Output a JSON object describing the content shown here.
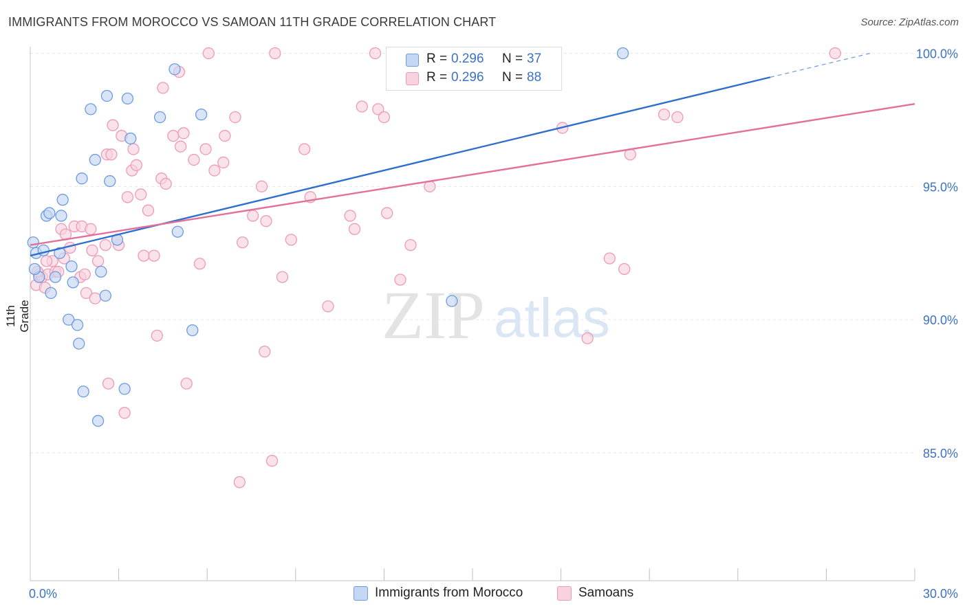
{
  "title": "IMMIGRANTS FROM MOROCCO VS SAMOAN 11TH GRADE CORRELATION CHART",
  "source": "Source: ZipAtlas.com",
  "watermark": {
    "zip": "ZIP",
    "atlas": "atlas"
  },
  "colors": {
    "blue_stroke": "#6b9be0",
    "blue_fill": "#c4d7f3",
    "blue_line": "#2f6fcc",
    "pink_stroke": "#ee9ab6",
    "pink_fill": "#f8d2de",
    "pink_line": "#e2709a",
    "axis_label": "#3b72c4",
    "grid": "#e6e6e6"
  },
  "stats": [
    {
      "r_label": "R =",
      "r_value": "0.296",
      "n_label": "N =",
      "n_value": "37",
      "series": "blue"
    },
    {
      "r_label": "R =",
      "r_value": "0.296",
      "n_label": "N =",
      "n_value": "88",
      "series": "pink"
    }
  ],
  "legend": [
    {
      "label": "Immigrants from Morocco",
      "series": "blue"
    },
    {
      "label": "Samoans",
      "series": "pink"
    }
  ],
  "chart_data": {
    "type": "scatter",
    "title": "IMMIGRANTS FROM MOROCCO VS SAMOAN 11TH GRADE CORRELATION CHART",
    "xlabel": "",
    "ylabel": "11th Grade",
    "xlim": [
      0,
      30
    ],
    "ylim": [
      80.2,
      100.4
    ],
    "x_tick_labels": [
      "0.0%",
      "30.0%"
    ],
    "y_ticks": [
      85,
      90,
      95,
      100
    ],
    "y_tick_labels": [
      "85.0%",
      "90.0%",
      "95.0%",
      "100.0%"
    ],
    "grid": true,
    "series": [
      {
        "name": "Immigrants from Morocco",
        "color": "blue",
        "points": [
          [
            0.1,
            92.9
          ],
          [
            0.2,
            92.5
          ],
          [
            0.3,
            91.6
          ],
          [
            0.45,
            92.6
          ],
          [
            0.55,
            93.9
          ],
          [
            0.65,
            94.0
          ],
          [
            0.7,
            91.0
          ],
          [
            0.85,
            91.6
          ],
          [
            1.0,
            92.5
          ],
          [
            1.05,
            93.9
          ],
          [
            1.1,
            94.5
          ],
          [
            1.3,
            90.0
          ],
          [
            1.4,
            92.0
          ],
          [
            1.45,
            91.4
          ],
          [
            1.6,
            89.8
          ],
          [
            1.65,
            89.1
          ],
          [
            1.75,
            95.3
          ],
          [
            1.8,
            87.3
          ],
          [
            2.05,
            97.9
          ],
          [
            2.2,
            96.0
          ],
          [
            2.3,
            86.2
          ],
          [
            2.4,
            91.8
          ],
          [
            2.55,
            90.9
          ],
          [
            2.6,
            98.4
          ],
          [
            2.7,
            95.2
          ],
          [
            2.95,
            93.0
          ],
          [
            3.2,
            87.4
          ],
          [
            3.3,
            98.3
          ],
          [
            3.4,
            96.8
          ],
          [
            4.4,
            97.6
          ],
          [
            4.9,
            99.4
          ],
          [
            5.0,
            93.3
          ],
          [
            5.5,
            89.6
          ],
          [
            5.8,
            97.7
          ],
          [
            14.3,
            90.7
          ],
          [
            20.1,
            100.0
          ],
          [
            0.15,
            91.9
          ]
        ]
      },
      {
        "name": "Samoans",
        "color": "pink",
        "points": [
          [
            0.2,
            91.3
          ],
          [
            0.3,
            91.7
          ],
          [
            0.4,
            91.6
          ],
          [
            0.5,
            91.2
          ],
          [
            0.6,
            91.7
          ],
          [
            0.75,
            92.2
          ],
          [
            0.85,
            91.8
          ],
          [
            1.05,
            93.4
          ],
          [
            1.15,
            92.3
          ],
          [
            1.2,
            93.2
          ],
          [
            1.35,
            92.7
          ],
          [
            1.5,
            93.5
          ],
          [
            1.7,
            91.6
          ],
          [
            1.75,
            93.5
          ],
          [
            1.9,
            91.0
          ],
          [
            2.05,
            93.4
          ],
          [
            2.1,
            92.6
          ],
          [
            2.2,
            90.8
          ],
          [
            2.3,
            92.2
          ],
          [
            2.55,
            92.8
          ],
          [
            2.6,
            96.2
          ],
          [
            2.75,
            96.2
          ],
          [
            2.65,
            87.6
          ],
          [
            2.8,
            97.3
          ],
          [
            3.0,
            92.8
          ],
          [
            3.1,
            96.9
          ],
          [
            3.2,
            86.5
          ],
          [
            3.3,
            94.6
          ],
          [
            3.45,
            95.6
          ],
          [
            3.5,
            96.4
          ],
          [
            3.6,
            95.8
          ],
          [
            3.75,
            94.7
          ],
          [
            3.85,
            92.4
          ],
          [
            4.0,
            94.1
          ],
          [
            4.2,
            92.4
          ],
          [
            4.3,
            89.4
          ],
          [
            4.45,
            95.3
          ],
          [
            4.5,
            98.7
          ],
          [
            4.6,
            95.1
          ],
          [
            4.85,
            96.9
          ],
          [
            5.05,
            99.3
          ],
          [
            5.1,
            96.5
          ],
          [
            5.2,
            97.0
          ],
          [
            5.3,
            87.6
          ],
          [
            5.55,
            96.0
          ],
          [
            5.75,
            92.1
          ],
          [
            5.95,
            96.4
          ],
          [
            6.05,
            100.0
          ],
          [
            6.25,
            95.6
          ],
          [
            6.55,
            95.9
          ],
          [
            6.6,
            96.9
          ],
          [
            6.95,
            97.6
          ],
          [
            7.1,
            83.9
          ],
          [
            7.2,
            92.9
          ],
          [
            7.55,
            93.9
          ],
          [
            7.85,
            95.0
          ],
          [
            7.95,
            88.8
          ],
          [
            8.0,
            93.7
          ],
          [
            8.2,
            84.7
          ],
          [
            8.3,
            100.0
          ],
          [
            8.55,
            91.6
          ],
          [
            8.85,
            93.0
          ],
          [
            9.3,
            96.4
          ],
          [
            9.5,
            94.6
          ],
          [
            10.1,
            90.5
          ],
          [
            10.85,
            93.9
          ],
          [
            11.0,
            93.4
          ],
          [
            11.25,
            98.0
          ],
          [
            11.7,
            100.0
          ],
          [
            11.8,
            97.9
          ],
          [
            12.0,
            97.6
          ],
          [
            12.1,
            94.0
          ],
          [
            12.55,
            91.5
          ],
          [
            12.9,
            92.8
          ],
          [
            13.55,
            95.0
          ],
          [
            18.05,
            97.2
          ],
          [
            18.9,
            89.3
          ],
          [
            19.65,
            92.3
          ],
          [
            20.15,
            91.9
          ],
          [
            20.35,
            96.2
          ],
          [
            21.5,
            97.7
          ],
          [
            21.95,
            97.6
          ],
          [
            27.3,
            100.0
          ],
          [
            0.25,
            91.8
          ],
          [
            0.95,
            91.8
          ],
          [
            1.85,
            91.7
          ],
          [
            0.55,
            92.2
          ],
          [
            2.95,
            93.0
          ]
        ]
      }
    ],
    "trend_lines": [
      {
        "series": "Immigrants from Morocco",
        "x": [
          0,
          25.1
        ],
        "y": [
          92.4,
          99.1
        ],
        "dashed_to": [
          28.5,
          100.0
        ]
      },
      {
        "series": "Samoans",
        "x": [
          0,
          30
        ],
        "y": [
          92.8,
          98.1
        ]
      }
    ]
  }
}
